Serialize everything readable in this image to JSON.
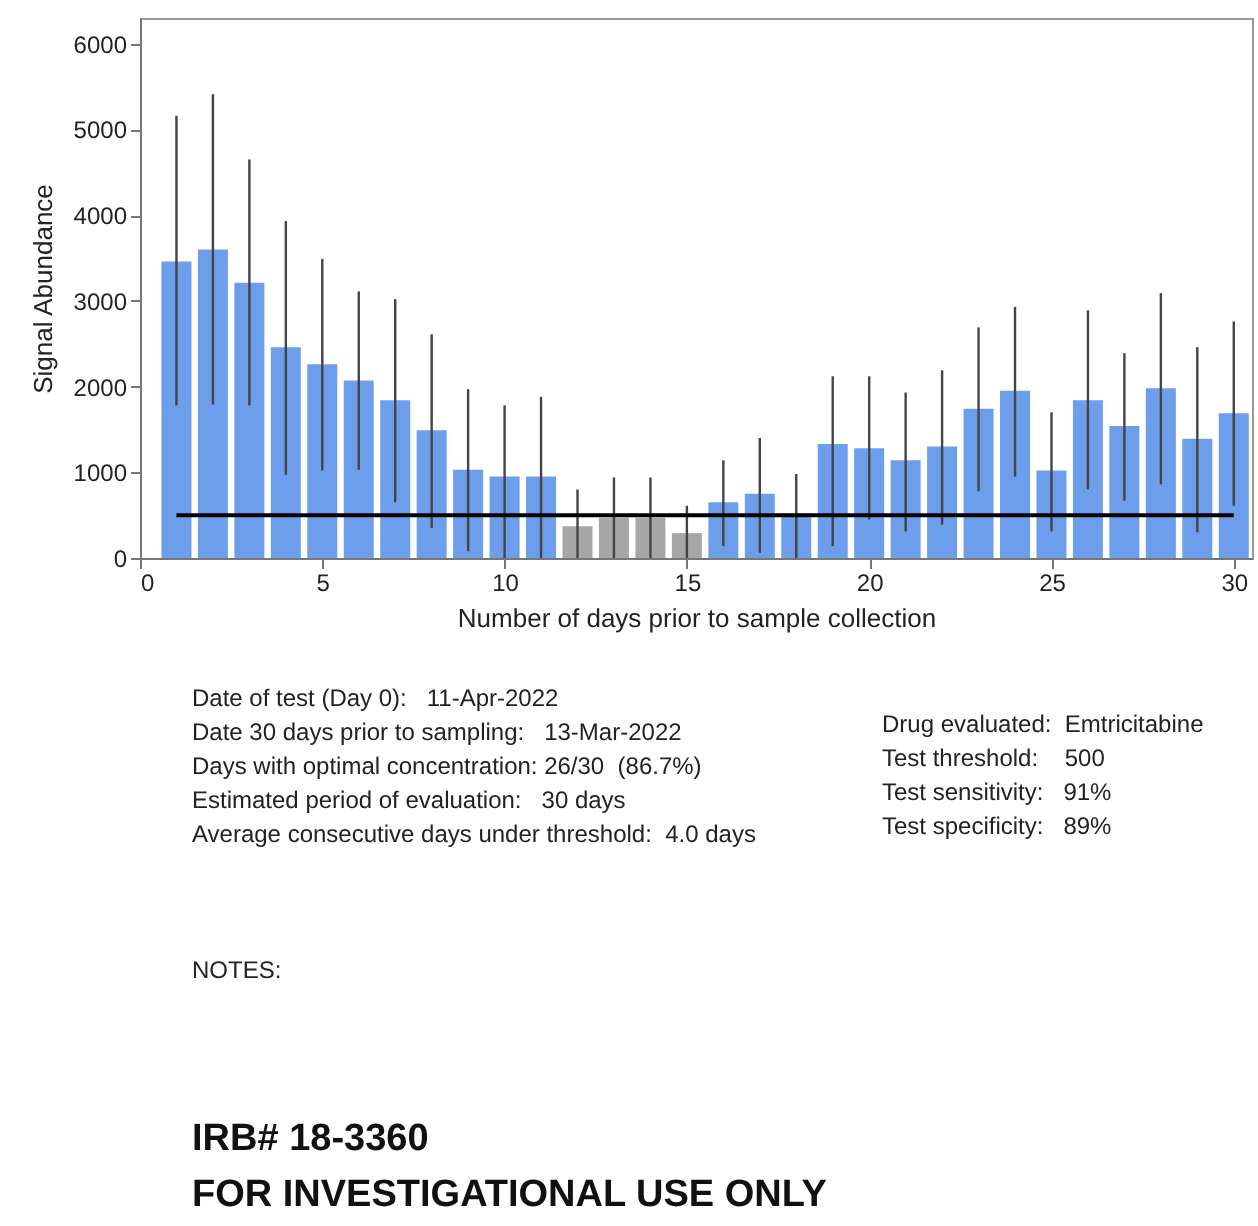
{
  "chart_data": {
    "type": "bar",
    "xlabel": "Number of days prior to sample collection",
    "ylabel": "Signal Abundance",
    "x": [
      1,
      2,
      3,
      4,
      5,
      6,
      7,
      8,
      9,
      10,
      11,
      12,
      13,
      14,
      15,
      16,
      17,
      18,
      19,
      20,
      21,
      22,
      23,
      24,
      25,
      26,
      27,
      28,
      29,
      30
    ],
    "values": [
      3460,
      3600,
      3210,
      2460,
      2260,
      2070,
      1840,
      1490,
      1030,
      950,
      950,
      370,
      470,
      470,
      290,
      650,
      750,
      520,
      1330,
      1280,
      1140,
      1300,
      1740,
      1950,
      1020,
      1840,
      1540,
      1980,
      1390,
      1690
    ],
    "colors": [
      "#6d9eeb",
      "#6d9eeb",
      "#6d9eeb",
      "#6d9eeb",
      "#6d9eeb",
      "#6d9eeb",
      "#6d9eeb",
      "#6d9eeb",
      "#6d9eeb",
      "#6d9eeb",
      "#6d9eeb",
      "#a6a6a6",
      "#a6a6a6",
      "#a6a6a6",
      "#a6a6a6",
      "#6d9eeb",
      "#6d9eeb",
      "#6d9eeb",
      "#6d9eeb",
      "#6d9eeb",
      "#6d9eeb",
      "#6d9eeb",
      "#6d9eeb",
      "#6d9eeb",
      "#6d9eeb",
      "#6d9eeb",
      "#6d9eeb",
      "#6d9eeb",
      "#6d9eeb",
      "#6d9eeb"
    ],
    "errors": [
      [
        1780,
        5160
      ],
      [
        1790,
        5410
      ],
      [
        1780,
        4650
      ],
      [
        970,
        3930
      ],
      [
        1020,
        3490
      ],
      [
        1030,
        3110
      ],
      [
        650,
        3020
      ],
      [
        350,
        2610
      ],
      [
        80,
        1970
      ],
      [
        0,
        1780
      ],
      [
        0,
        1880
      ],
      [
        0,
        800
      ],
      [
        0,
        940
      ],
      [
        0,
        940
      ],
      [
        0,
        610
      ],
      [
        140,
        1140
      ],
      [
        60,
        1400
      ],
      [
        0,
        980
      ],
      [
        140,
        2120
      ],
      [
        450,
        2120
      ],
      [
        310,
        1930
      ],
      [
        390,
        2190
      ],
      [
        780,
        2690
      ],
      [
        950,
        2930
      ],
      [
        310,
        1700
      ],
      [
        800,
        2890
      ],
      [
        670,
        2390
      ],
      [
        860,
        3090
      ],
      [
        300,
        2460
      ],
      [
        610,
        2760
      ]
    ],
    "ref_lines": [
      {
        "axis": "y",
        "value": 500,
        "color": "#000000"
      }
    ],
    "xlim": [
      0,
      30.5
    ],
    "ylim": [
      0,
      6300
    ],
    "xticks": [
      0,
      5,
      10,
      15,
      20,
      25,
      30
    ],
    "yticks": [
      0,
      1000,
      2000,
      3000,
      4000,
      5000,
      6000
    ],
    "grid": false,
    "annotations": [
      "Date of test (Day 0):   11-Apr-2022",
      "Date 30 days prior to sampling:   13-Mar-2022",
      "Days with optimal concentration: 26/30  (86.7%)",
      "Estimated period of evaluation:   30 days",
      "Average consecutive days under threshold:  4.0 days",
      "Drug evaluated:  Emtricitabine",
      "Test threshold:    500",
      "Test sensitivity:   91%",
      "Test specificity:   89%",
      "NOTES:",
      "IRB# 18-3360",
      "FOR INVESTIGATIONAL USE ONLY"
    ]
  }
}
